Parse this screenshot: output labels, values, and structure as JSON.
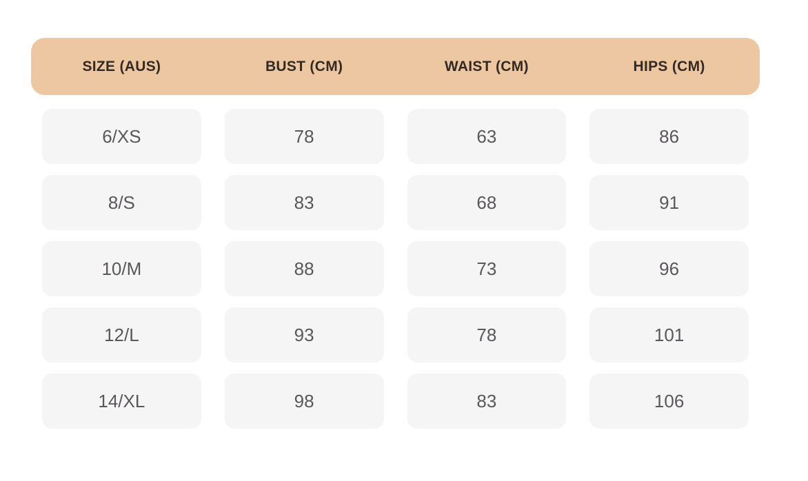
{
  "chart_data": {
    "type": "table",
    "columns": [
      "SIZE (AUS)",
      "BUST (CM)",
      "WAIST (CM)",
      "HIPS (CM)"
    ],
    "rows": [
      [
        "6/XS",
        "78",
        "63",
        "86"
      ],
      [
        "8/S",
        "83",
        "68",
        "91"
      ],
      [
        "10/M",
        "88",
        "73",
        "96"
      ],
      [
        "12/L",
        "93",
        "78",
        "101"
      ],
      [
        "14/XL",
        "98",
        "83",
        "106"
      ]
    ]
  },
  "colors": {
    "background": "#ffffff",
    "header_bg": "#ecc7a1",
    "header_text": "#342a23",
    "cell_bg": "#f6f5f6",
    "cell_text": "#5a575a"
  }
}
